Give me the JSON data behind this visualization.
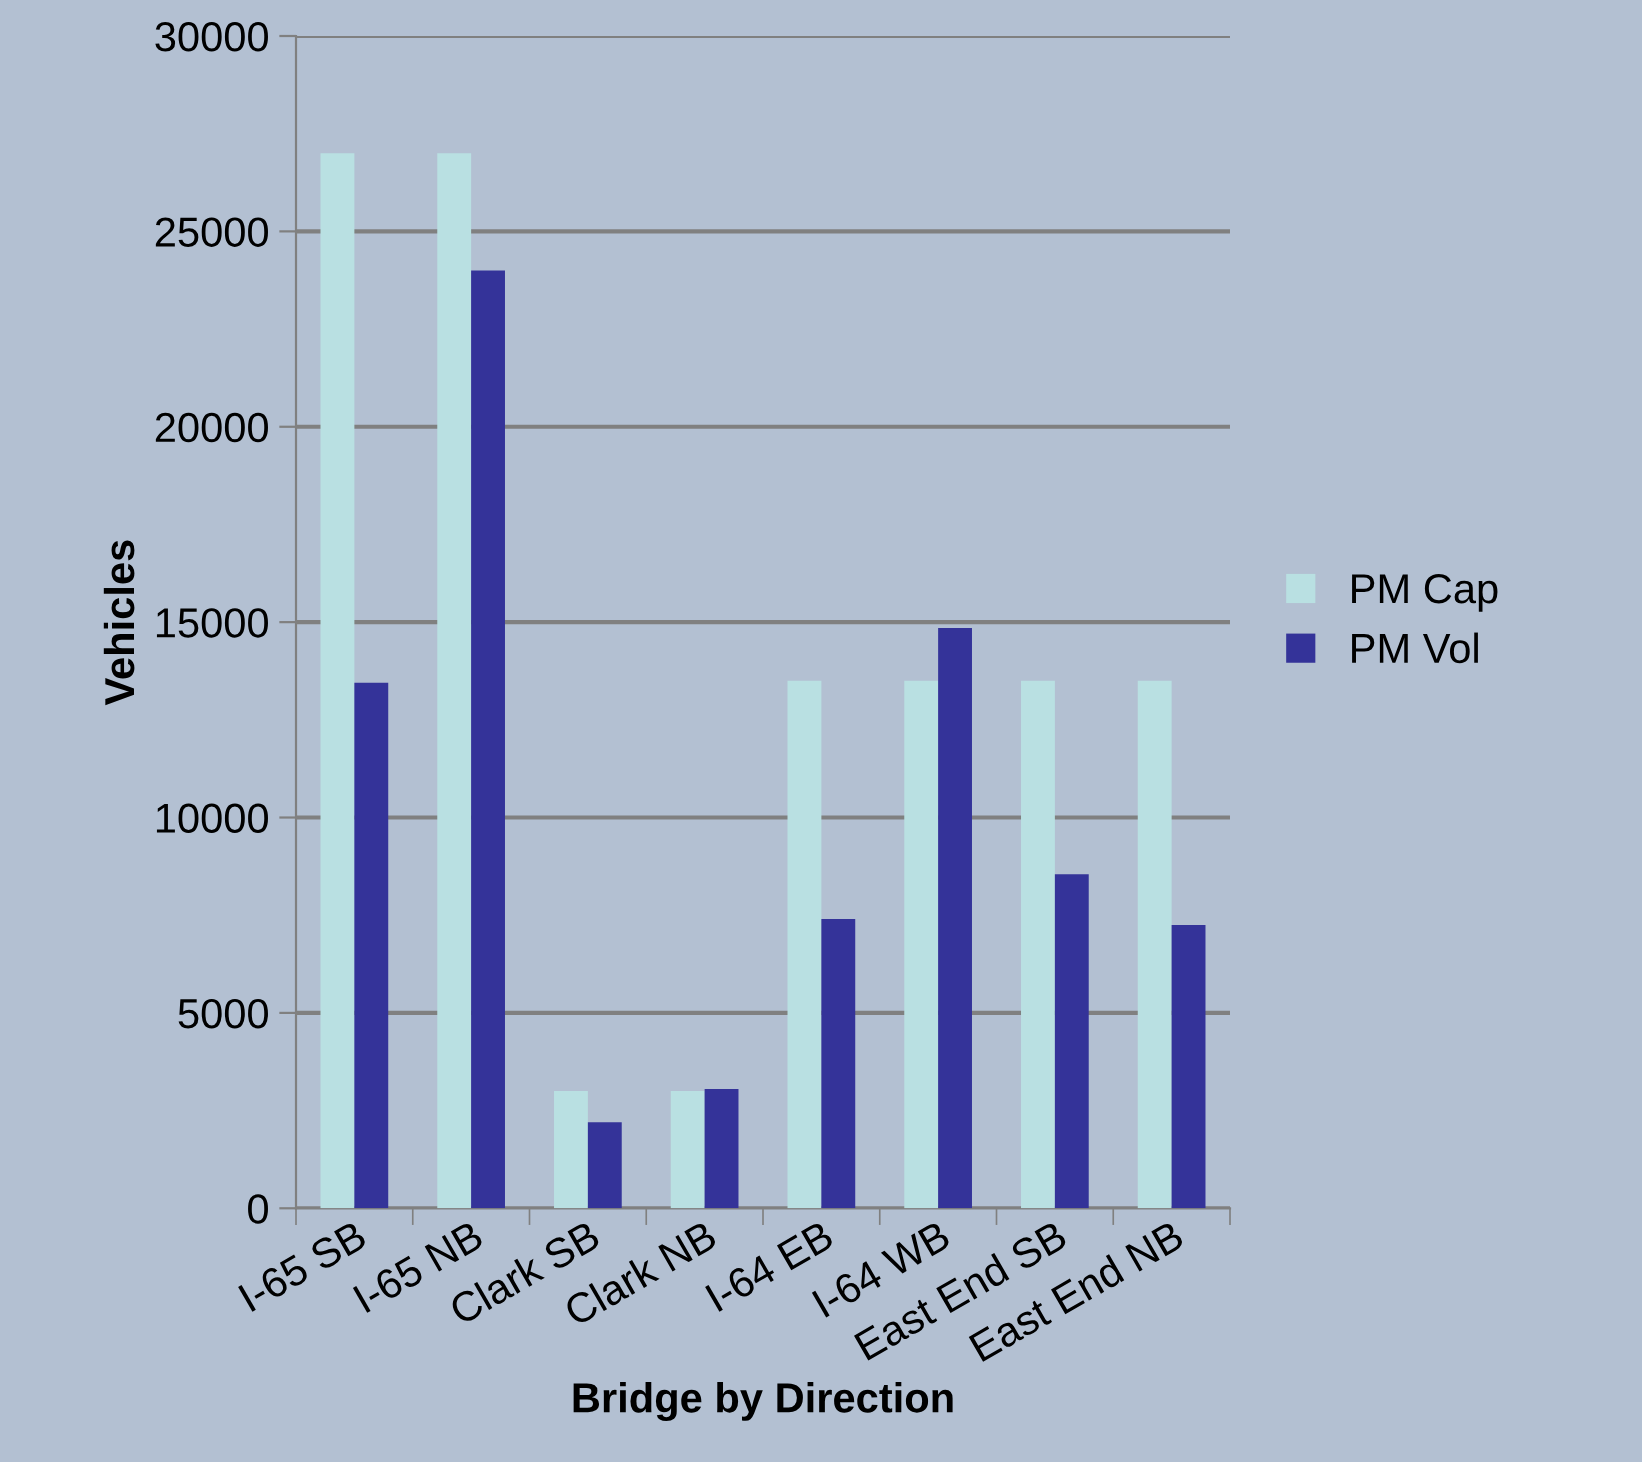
{
  "chart_data": {
    "type": "bar",
    "xlabel": "Bridge by Direction",
    "ylabel": "Vehicles",
    "categories": [
      "I-65 SB",
      "I-65 NB",
      "Clark SB",
      "Clark NB",
      "I-64 EB",
      "I-64 WB",
      "East End SB",
      "East End NB"
    ],
    "series": [
      {
        "name": "PM Cap",
        "color": "#b9e0e2",
        "values": [
          27000,
          27000,
          3000,
          3000,
          13500,
          13500,
          13500,
          13500
        ]
      },
      {
        "name": "PM Vol",
        "color": "#343399",
        "values": [
          13450,
          24000,
          2200,
          3050,
          7400,
          14850,
          8550,
          7250
        ]
      }
    ],
    "ylim": [
      0,
      30000
    ],
    "yticks": [
      0,
      5000,
      10000,
      15000,
      20000,
      25000,
      30000
    ],
    "grid": "y",
    "legend": "right"
  }
}
